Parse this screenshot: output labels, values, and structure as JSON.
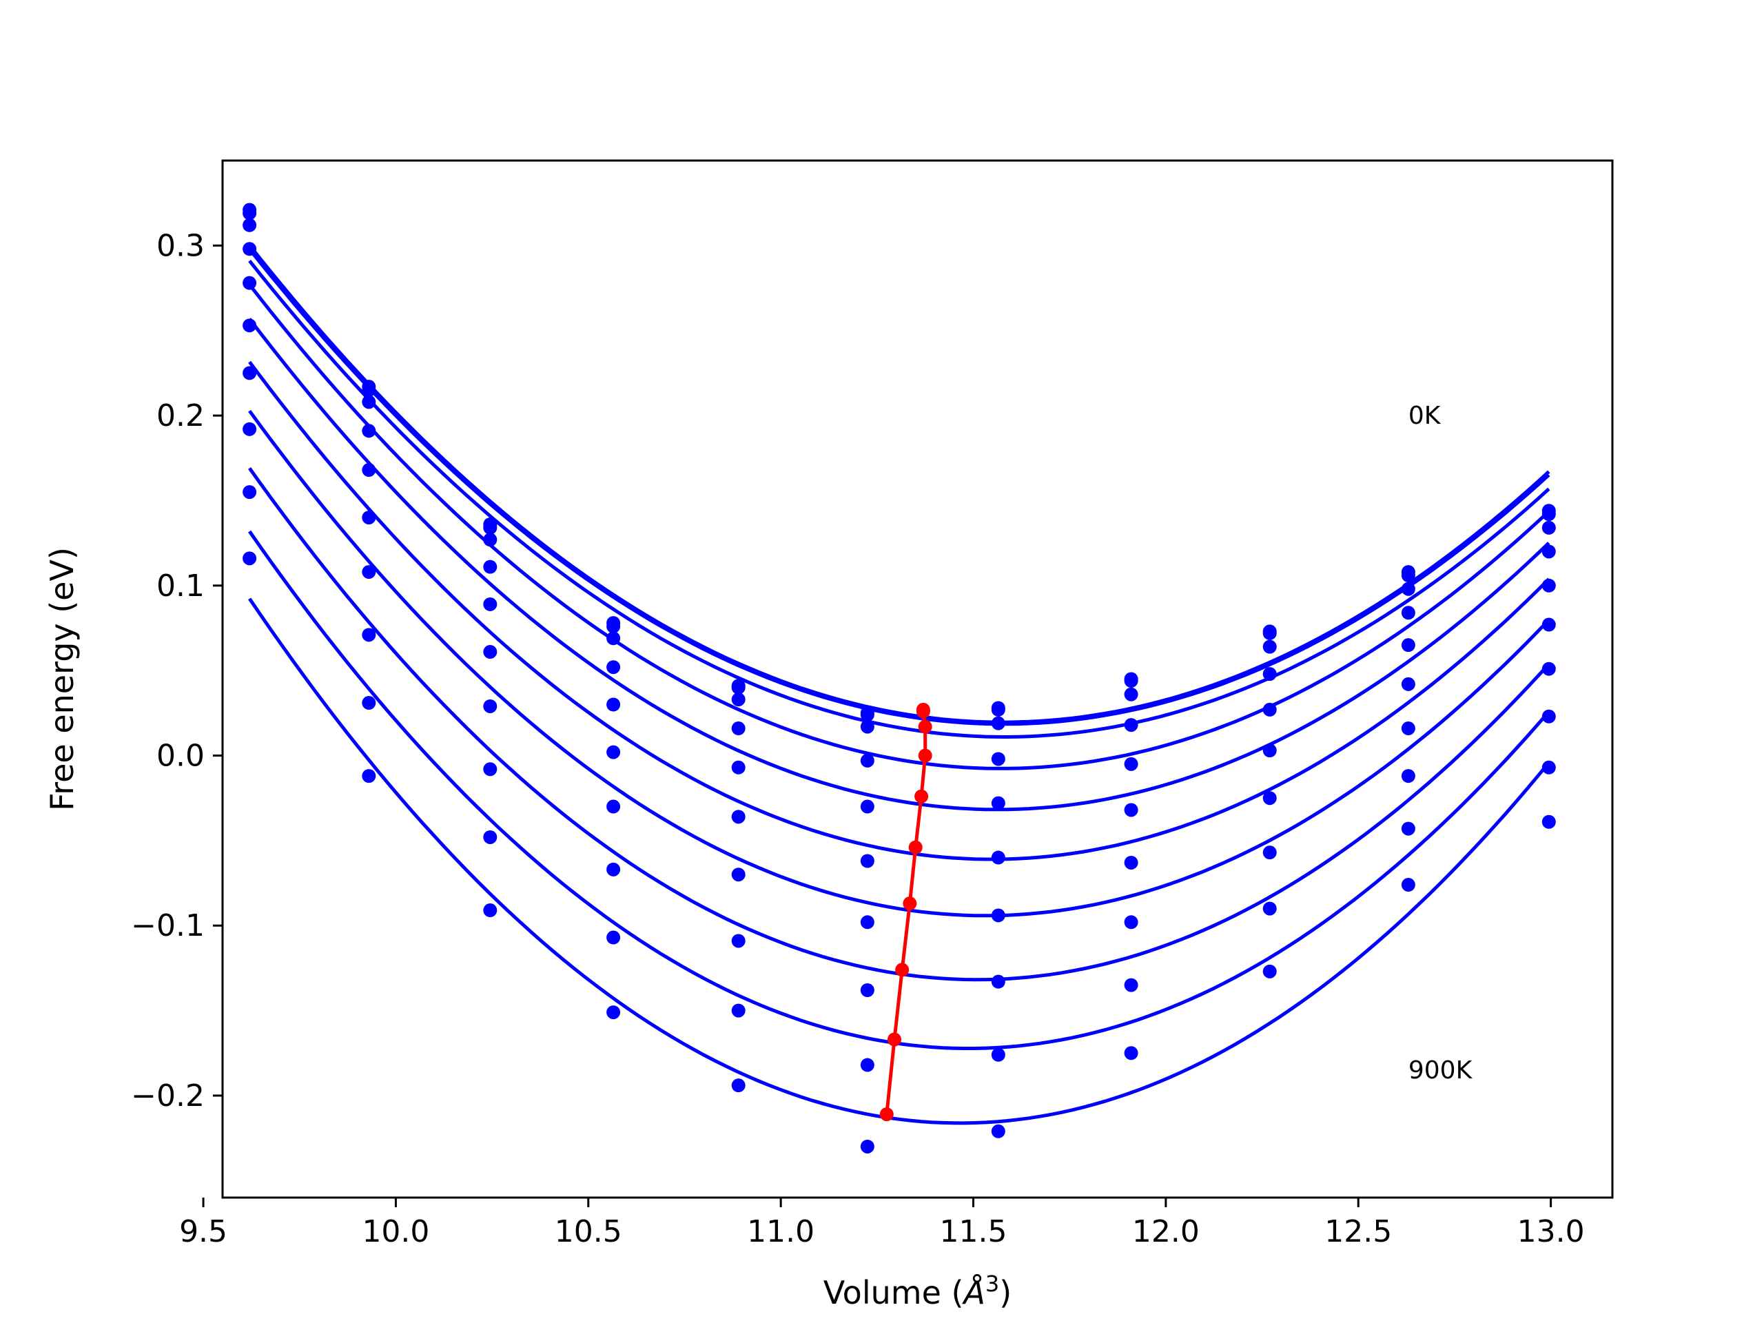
{
  "chart_data": {
    "type": "line",
    "title": "",
    "xlabel": "Volume (",
    "xlabel_symbol": "Å",
    "xlabel_exp": "3",
    "xlabel_close": ")",
    "ylabel": "Free energy (eV)",
    "xlim": [
      9.55,
      13.16
    ],
    "ylim": [
      -0.26,
      0.35
    ],
    "xticks": [
      9.5,
      10.0,
      10.5,
      11.0,
      11.5,
      12.0,
      12.5,
      13.0
    ],
    "xtick_labels": [
      "9.5",
      "10.0",
      "10.5",
      "11.0",
      "11.5",
      "12.0",
      "12.5",
      "13.0"
    ],
    "yticks": [
      -0.2,
      -0.1,
      0.0,
      0.1,
      0.2,
      0.3
    ],
    "ytick_labels": [
      "−0.2",
      "−0.1",
      "0.0",
      "0.1",
      "0.2",
      "0.3"
    ],
    "grid": false,
    "annotations": [
      {
        "text": "0K",
        "x": 12.63,
        "y": 0.2
      },
      {
        "text": "900K",
        "x": 12.63,
        "y": -0.185
      }
    ],
    "curve_color": "#0000ff",
    "minimum_color": "#ff0000",
    "x": [
      9.62,
      9.93,
      10.245,
      10.565,
      10.89,
      11.225,
      11.565,
      11.91,
      12.27,
      12.63,
      12.995
    ],
    "series": [
      {
        "y": [
          0.321,
          0.217,
          0.136,
          0.078,
          0.041,
          0.025,
          0.028,
          0.045,
          0.073,
          0.108,
          0.144
        ],
        "min_x": 11.37,
        "min_y": 0.027
      },
      {
        "y": [
          0.319,
          0.215,
          0.134,
          0.076,
          0.04,
          0.024,
          0.027,
          0.044,
          0.072,
          0.106,
          0.142
        ],
        "min_x": 11.37,
        "min_y": 0.026
      },
      {
        "y": [
          0.312,
          0.208,
          0.127,
          0.069,
          0.033,
          0.017,
          0.019,
          0.036,
          0.064,
          0.098,
          0.134
        ],
        "min_x": 11.375,
        "min_y": 0.017
      },
      {
        "y": [
          0.298,
          0.191,
          0.111,
          0.052,
          0.016,
          -0.003,
          -0.002,
          0.018,
          0.048,
          0.084,
          0.12
        ],
        "min_x": 11.375,
        "min_y": 0.0
      },
      {
        "y": [
          0.278,
          0.168,
          0.089,
          0.03,
          -0.007,
          -0.03,
          -0.028,
          -0.005,
          0.027,
          0.065,
          0.1
        ],
        "min_x": 11.365,
        "min_y": -0.024
      },
      {
        "y": [
          0.253,
          0.14,
          0.061,
          0.002,
          -0.036,
          -0.062,
          -0.06,
          -0.032,
          0.003,
          0.042,
          0.077
        ],
        "min_x": 11.35,
        "min_y": -0.054
      },
      {
        "y": [
          0.225,
          0.108,
          0.029,
          -0.03,
          -0.07,
          -0.098,
          -0.094,
          -0.063,
          -0.025,
          0.016,
          0.051
        ],
        "min_x": 11.335,
        "min_y": -0.087
      },
      {
        "y": [
          0.192,
          0.071,
          -0.008,
          -0.067,
          -0.109,
          -0.138,
          -0.133,
          -0.098,
          -0.057,
          -0.012,
          0.023
        ],
        "min_x": 11.315,
        "min_y": -0.126
      },
      {
        "y": [
          0.155,
          0.031,
          -0.048,
          -0.107,
          -0.15,
          -0.182,
          -0.176,
          -0.135,
          -0.09,
          -0.043,
          -0.007
        ],
        "min_x": 11.295,
        "min_y": -0.167
      },
      {
        "y": [
          0.116,
          -0.012,
          -0.091,
          -0.151,
          -0.194,
          -0.23,
          -0.221,
          -0.175,
          -0.127,
          -0.076,
          -0.039
        ],
        "min_x": 11.275,
        "min_y": -0.211
      }
    ]
  }
}
